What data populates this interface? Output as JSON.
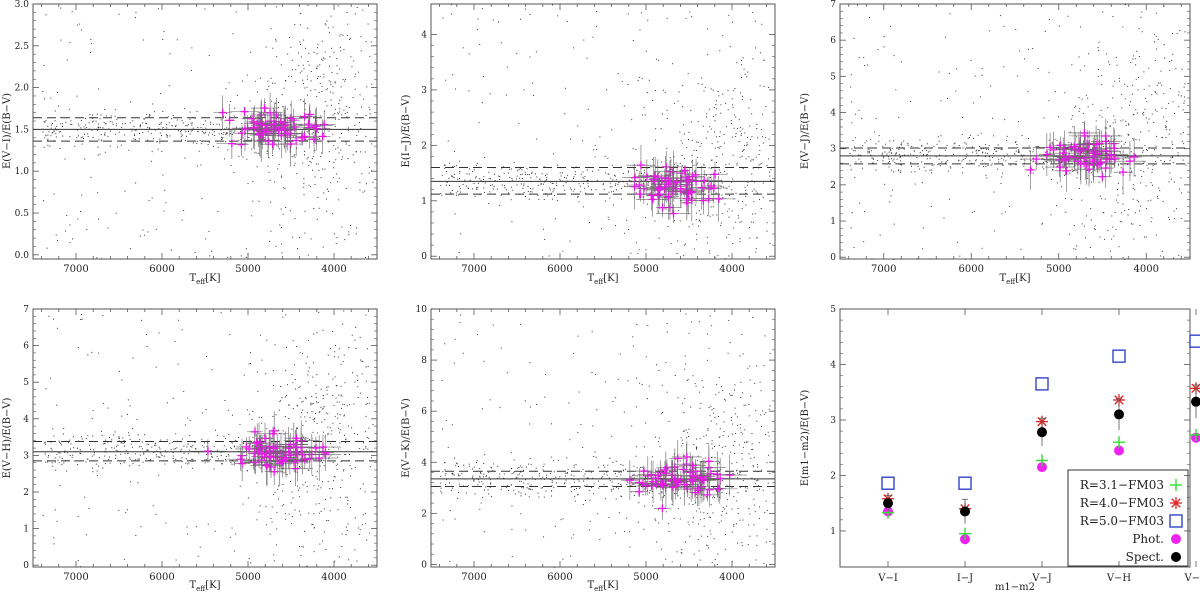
{
  "figure": {
    "xlabel_main": "T",
    "xlabel_sub": "eff",
    "xlabel_unit": "[K]"
  },
  "panels": [
    {
      "ylabel": "E(V−I)/E(B−V)",
      "xticks": [
        "7000",
        "6000",
        "5000",
        "4000"
      ],
      "yticks": [
        "0.0",
        "0.5",
        "1.0",
        "1.5",
        "2.0",
        "2.5",
        "3.0"
      ],
      "xlim": [
        7500,
        3500
      ],
      "ylim": [
        -0.05,
        3.0
      ],
      "mean": 1.5,
      "band": [
        1.36,
        1.64
      ],
      "cluster_center": 1.5
    },
    {
      "ylabel": "E(I−J)/E(B−V)",
      "xticks": [
        "7000",
        "6000",
        "5000",
        "4000"
      ],
      "yticks": [
        "0",
        "1",
        "2",
        "3",
        "4"
      ],
      "xlim": [
        7500,
        3500
      ],
      "ylim": [
        -0.05,
        4.55
      ],
      "mean": 1.35,
      "band": [
        1.12,
        1.6
      ],
      "cluster_center": 1.22
    },
    {
      "ylabel": "E(V−J)/E(B−V)",
      "xticks": [
        "7000",
        "6000",
        "5000",
        "4000"
      ],
      "yticks": [
        "0",
        "1",
        "2",
        "3",
        "4",
        "5",
        "6",
        "7"
      ],
      "xlim": [
        7500,
        3500
      ],
      "ylim": [
        -0.05,
        7.0
      ],
      "mean": 2.8,
      "band": [
        2.58,
        3.02
      ],
      "cluster_center": 2.8
    },
    {
      "ylabel": "E(V−H)/E(B−V)",
      "xticks": [
        "7000",
        "6000",
        "5000",
        "4000"
      ],
      "yticks": [
        "0",
        "1",
        "2",
        "3",
        "4",
        "5",
        "6",
        "7"
      ],
      "xlim": [
        7500,
        3500
      ],
      "ylim": [
        -0.05,
        7.0
      ],
      "mean": 3.1,
      "band": [
        2.85,
        3.38
      ],
      "cluster_center": 3.1
    },
    {
      "ylabel": "E(V−K)/E(B−V)",
      "xticks": [
        "7000",
        "6000",
        "5000",
        "4000"
      ],
      "yticks": [
        "0",
        "2",
        "4",
        "6",
        "8",
        "10"
      ],
      "xlim": [
        7500,
        3500
      ],
      "ylim": [
        -0.1,
        10.0
      ],
      "mean": 3.35,
      "band": [
        3.05,
        3.65
      ],
      "cluster_center": 3.3
    }
  ],
  "chart_data": {
    "type": "scatter",
    "xlabel": "m1−m2",
    "ylabel": "E(m1−m2)/E(B−V)",
    "categories": [
      "V−I",
      "I−J",
      "V−J",
      "V−H",
      "V−K"
    ],
    "yticks": [
      "1",
      "2",
      "3",
      "4",
      "5"
    ],
    "ylim": [
      0.35,
      5.0
    ],
    "series": [
      {
        "name": "R=3.1−FM03",
        "marker": "plus",
        "color": "#33dd33",
        "values": [
          1.33,
          0.95,
          2.27,
          2.6,
          2.73
        ]
      },
      {
        "name": "R=4.0−FM03",
        "marker": "star",
        "color": "#dd2222",
        "values": [
          1.58,
          1.4,
          2.97,
          3.36,
          3.57
        ]
      },
      {
        "name": "R=5.0−FM03",
        "marker": "square",
        "color": "#3344cc",
        "values": [
          1.86,
          1.86,
          3.65,
          4.15,
          4.42
        ]
      },
      {
        "name": "Phot.",
        "marker": "dot",
        "color": "#ee22ee",
        "values": [
          1.35,
          0.85,
          2.15,
          2.45,
          2.68
        ]
      },
      {
        "name": "Spect.",
        "marker": "dot",
        "color": "#000000",
        "values": [
          1.5,
          1.35,
          2.78,
          3.1,
          3.33
        ],
        "errors": [
          0.14,
          0.22,
          0.25,
          0.28,
          0.3
        ]
      }
    ]
  }
}
